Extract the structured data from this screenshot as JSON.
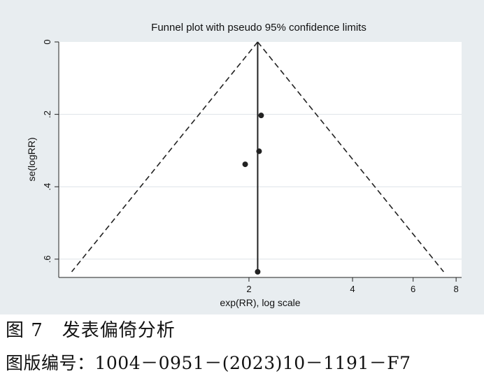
{
  "chart_data": {
    "type": "scatter",
    "title": "Funnel plot with pseudo 95% confidence limits",
    "xlabel": "exp(RR), log scale",
    "ylabel": "se(logRR)",
    "x_scale": "log",
    "y_reversed": true,
    "x_ticks": [
      {
        "value": 2,
        "label": "2"
      },
      {
        "value": 4,
        "label": "4"
      },
      {
        "value": 6,
        "label": "6"
      },
      {
        "value": 8,
        "label": "8"
      }
    ],
    "y_ticks": [
      {
        "value": 0,
        "label": "0"
      },
      {
        "value": 0.2,
        "label": ".2"
      },
      {
        "value": 0.4,
        "label": ".4"
      },
      {
        "value": 0.6,
        "label": ".6"
      }
    ],
    "xlim": [
      0.56,
      8.3
    ],
    "ylim": [
      0,
      0.65
    ],
    "pooled_estimate": 2.12,
    "confidence_limits_se_max": 0.635,
    "points": [
      {
        "x": 2.17,
        "y": 0.203
      },
      {
        "x": 2.14,
        "y": 0.302
      },
      {
        "x": 1.95,
        "y": 0.338
      },
      {
        "x": 2.12,
        "y": 0.635
      }
    ],
    "grid": true,
    "legend": "none",
    "colors": {
      "background": "#e8edf0",
      "plot_area": "#ffffff",
      "marks": "#222222",
      "grid": "#dde3e8"
    }
  },
  "caption": {
    "figure": "图 7　发表偏倚分析",
    "id": "图版编号：1004－0951－(2023)10－1191－F7"
  }
}
